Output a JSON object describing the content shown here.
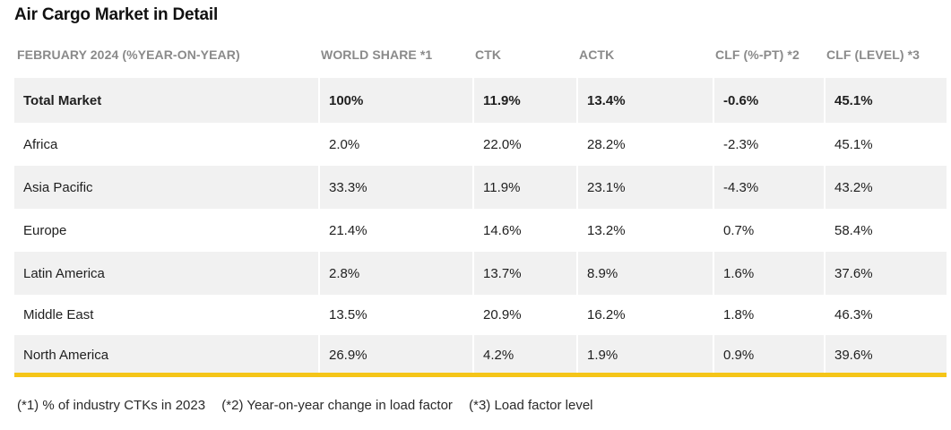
{
  "title": "Air Cargo Market in Detail",
  "headers": [
    "FEBRUARY 2024 (%YEAR-ON-YEAR)",
    "WORLD SHARE *1",
    "CTK",
    "ACTK",
    "CLF (%-PT) *2",
    "CLF (LEVEL) *3"
  ],
  "rows": [
    [
      "Total Market",
      "100%",
      "11.9%",
      "13.4%",
      "-0.6%",
      "45.1%"
    ],
    [
      "Africa",
      "2.0%",
      "22.0%",
      "28.2%",
      "-2.3%",
      "45.1%"
    ],
    [
      "Asia Pacific",
      "33.3%",
      "11.9%",
      "23.1%",
      "-4.3%",
      "43.2%"
    ],
    [
      "Europe",
      "21.4%",
      "14.6%",
      "13.2%",
      "0.7%",
      "58.4%"
    ],
    [
      "Latin America",
      "2.8%",
      "13.7%",
      "8.9%",
      "1.6%",
      "37.6%"
    ],
    [
      "Middle East",
      "13.5%",
      "20.9%",
      "16.2%",
      "1.8%",
      "46.3%"
    ],
    [
      "North America",
      "26.9%",
      "4.2%",
      "1.9%",
      "0.9%",
      "39.6%"
    ]
  ],
  "footnotes": [
    "(*1) % of industry CTKs in 2023",
    "(*2) Year-on-year change in load factor",
    "(*3) Load factor level"
  ],
  "colors": {
    "accent_bar": "#f5c518",
    "band": "#f1f1f1",
    "header_text": "#8a8a8a"
  }
}
